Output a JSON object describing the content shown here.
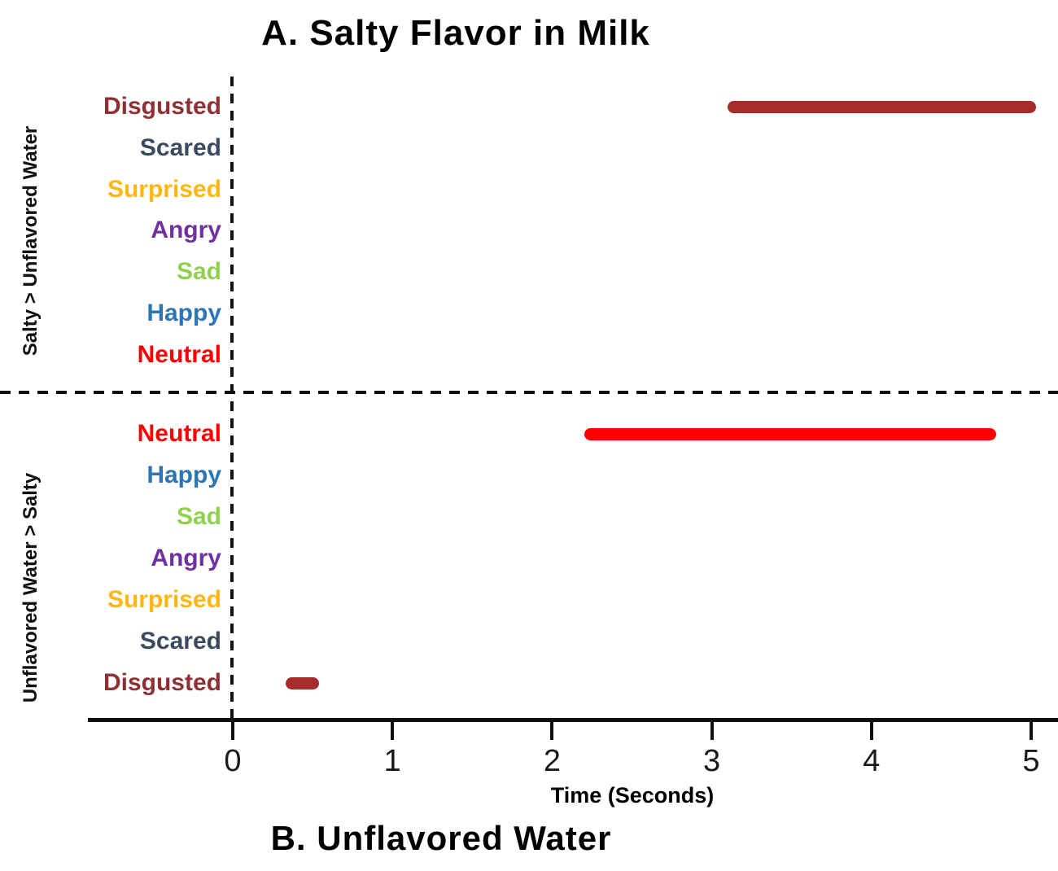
{
  "figure_title_a": "A. Salty Flavor in Milk",
  "figure_title_b": "B. Unflavored Water",
  "styles": {
    "background": "#FFFFFF",
    "axis_color": "#111111",
    "dashed_line_color": "#111111",
    "tick_label_color": "#1A1A1A",
    "title_color": "#000000",
    "disgusted_bar_color": "#A62B2B",
    "neutral_bar_color": "#FF0000"
  },
  "chart_data": {
    "type": "timeline-intervals",
    "title": "A. Salty Flavor in Milk",
    "subtitle": "B. Unflavored Water",
    "xlabel": "Time (Seconds)",
    "x_ticks": [
      0,
      1,
      2,
      3,
      4,
      5
    ],
    "x_tick_labels": [
      "0",
      "1",
      "2",
      "3",
      "4",
      "5"
    ],
    "x_range": [
      -0.9,
      5.17
    ],
    "grid": false,
    "legend": "none",
    "zero_reference_line": "vertical dashed at x=0",
    "panel_divider": "horizontal dashed line between panels",
    "panels": [
      {
        "id": "A",
        "title": "A. Salty Flavor in Milk",
        "side_label": "Salty > Unflavored Water",
        "categories": [
          {
            "label": "Disgusted",
            "color": "#8F3134"
          },
          {
            "label": "Scared",
            "color": "#3B4A5E"
          },
          {
            "label": "Surprised",
            "color": "#FFB612"
          },
          {
            "label": "Angry",
            "color": "#7030A0"
          },
          {
            "label": "Sad",
            "color": "#92D050"
          },
          {
            "label": "Happy",
            "color": "#2E75B6"
          },
          {
            "label": "Neutral",
            "color": "#FF0000"
          }
        ],
        "intervals": [
          {
            "category": "Disgusted",
            "start": 3.1,
            "end": 5.03,
            "color": "#A62B2B"
          }
        ]
      },
      {
        "id": "B",
        "title": "B. Unflavored Water",
        "side_label": "Unflavored Water > Salty",
        "categories": [
          {
            "label": "Neutral",
            "color": "#FF0000"
          },
          {
            "label": "Happy",
            "color": "#2E75B6"
          },
          {
            "label": "Sad",
            "color": "#92D050"
          },
          {
            "label": "Angry",
            "color": "#7030A0"
          },
          {
            "label": "Surprised",
            "color": "#FFB612"
          },
          {
            "label": "Scared",
            "color": "#3B4A5E"
          },
          {
            "label": "Disgusted",
            "color": "#8F3134"
          }
        ],
        "intervals": [
          {
            "category": "Neutral",
            "start": 2.2,
            "end": 4.78,
            "color": "#FF0000"
          },
          {
            "category": "Disgusted",
            "start": 0.33,
            "end": 0.54,
            "color": "#A62B2B"
          }
        ]
      }
    ]
  }
}
